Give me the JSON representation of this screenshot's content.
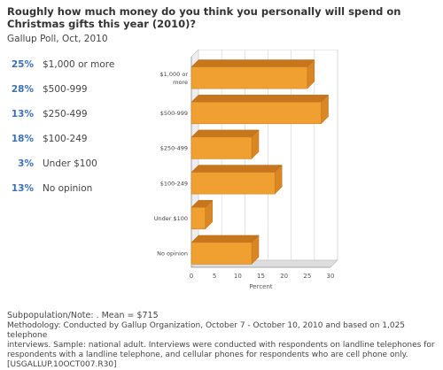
{
  "question": "Roughly how much money do you think you personally will spend on Christmas gifts this year (2010)?",
  "source": "Gallup Poll, Oct, 2010",
  "answers": [
    {
      "pct": "25%",
      "label": "$1,000 or more"
    },
    {
      "pct": "28%",
      "label": "$500-999"
    },
    {
      "pct": "13%",
      "label": "$250-499"
    },
    {
      "pct": "18%",
      "label": "$100-249"
    },
    {
      "pct": "3%",
      "label": "Under $100"
    },
    {
      "pct": "13%",
      "label": "No opinion"
    }
  ],
  "chart_data": {
    "type": "bar",
    "orientation": "horizontal",
    "categories": [
      "$1,000 or more",
      "$500-999",
      "$250-499",
      "$100-249",
      "Under $100",
      "No opinion"
    ],
    "values": [
      25,
      28,
      13,
      18,
      3,
      13
    ],
    "xlabel": "Percent",
    "xlim": [
      0,
      30
    ],
    "xticks": [
      0,
      5,
      10,
      15,
      20,
      25,
      30
    ],
    "grid": true,
    "bar_color": "#f0a030"
  },
  "footnote": "Subpopulation/Note: . Mean = $715",
  "methodology": {
    "line1": "Methodology: Conducted by Gallup Organization, October 7 - October 10, 2010 and based on 1,025 telephone",
    "line2": "interviews. Sample: national adult. Interviews were conducted with respondents on landline telephones for",
    "line3": "respondents with a landline telephone, and cellular phones for respondents who are cell phone only.",
    "line4": "[USGALLUP.10OCT007.R30]"
  }
}
